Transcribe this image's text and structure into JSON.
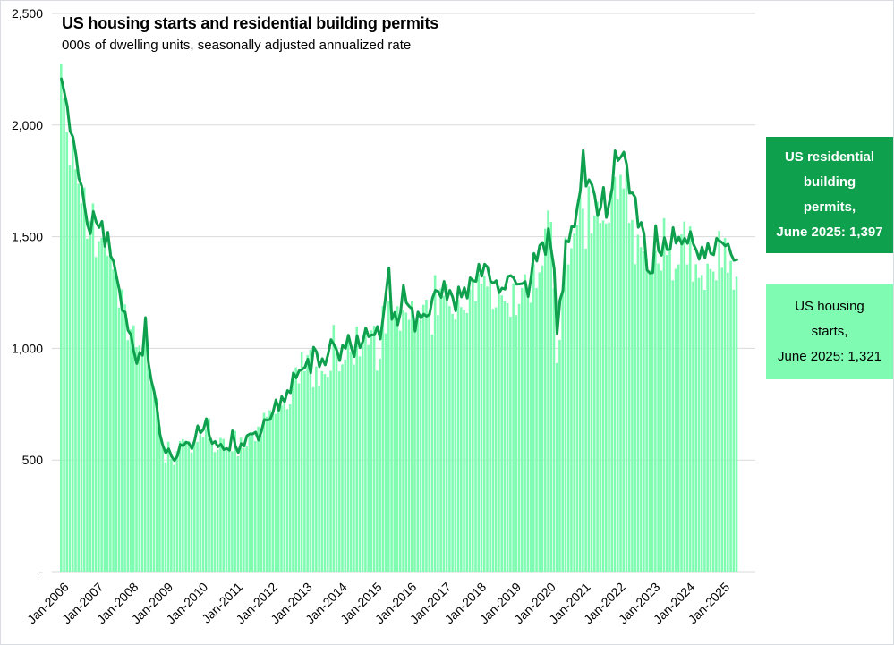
{
  "header": {
    "title": "US housing starts and residential building permits",
    "subtitle": "000s of dwelling units, seasonally adjusted annualized rate"
  },
  "legend": {
    "permits": {
      "bg": "#0FA04E",
      "text_color": "#ffffff",
      "lines": [
        "US residential",
        "building",
        "permits,",
        "June 2025: 1,397"
      ]
    },
    "starts": {
      "bg": "#7FFCB2",
      "text_color": "#000000",
      "lines": [
        "US housing",
        "starts,",
        "June 2025: 1,321"
      ]
    }
  },
  "chart_data": {
    "type": "bar+line",
    "title": "US housing starts and residential building permits",
    "subtitle": "000s of dwelling units, seasonally adjusted annualized rate",
    "x_start": "Jan-2006",
    "x_end": "Jun-2025",
    "x_frequency": "monthly",
    "ylim": [
      0,
      2500
    ],
    "grid": "horizontal",
    "legend_position": "right",
    "y_tick_values": [
      0,
      500,
      1000,
      1500,
      2000,
      2500
    ],
    "y_ticks": [
      "-",
      "500",
      "1,000",
      "1,500",
      "2,000",
      "2,500"
    ],
    "x_ticks": [
      "Jan-2006",
      "Jan-2007",
      "Jan-2008",
      "Jan-2009",
      "Jan-2010",
      "Jan-2011",
      "Jan-2012",
      "Jan-2013",
      "Jan-2014",
      "Jan-2015",
      "Jan-2016",
      "Jan-2017",
      "Jan-2018",
      "Jan-2019",
      "Jan-2020",
      "Jan-2021",
      "Jan-2022",
      "Jan-2023",
      "Jan-2024",
      "Jan-2025"
    ],
    "x_tick_interval_months": 12,
    "colors": {
      "bars": "#7FFCB2",
      "line": "#0FA04E",
      "grid": "#D9D9D9",
      "text": "#000000"
    },
    "series": [
      {
        "name": "US housing starts",
        "type": "bar",
        "latest_label": "June 2025: 1,321",
        "values": [
          2273,
          2119,
          1969,
          1821,
          1942,
          1802,
          1737,
          1650,
          1720,
          1491,
          1570,
          1649,
          1409,
          1480,
          1495,
          1490,
          1415,
          1448,
          1354,
          1330,
          1183,
          1264,
          1197,
          1037,
          1084,
          1103,
          1005,
          1013,
          973,
          1046,
          923,
          844,
          820,
          777,
          652,
          560,
          490,
          582,
          505,
          478,
          540,
          585,
          594,
          586,
          585,
          534,
          588,
          581,
          614,
          604,
          636,
          687,
          583,
          536,
          546,
          599,
          594,
          543,
          545,
          539,
          630,
          517,
          600,
          554,
          561,
          608,
          623,
          585,
          650,
          610,
          711,
          694,
          723,
          718,
          706,
          747,
          744,
          754,
          728,
          749,
          854,
          915,
          843,
          983,
          898,
          969,
          994,
          826,
          919,
          831,
          898,
          885,
          873,
          899,
          1105,
          1010,
          897,
          928,
          950,
          1039,
          984,
          927,
          1098,
          964,
          1028,
          1080,
          1015,
          1081,
          1101,
          900,
          954,
          1190,
          1067,
          1213,
          1147,
          1141,
          1189,
          1079,
          1171,
          1160,
          1128,
          1213,
          1113,
          1155,
          1128,
          1195,
          1218,
          1164,
          1062,
          1328,
          1149,
          1268,
          1236,
          1288,
          1189,
          1154,
          1129,
          1217,
          1185,
          1172,
          1158,
          1265,
          1303,
          1210,
          1334,
          1290,
          1327,
          1276,
          1329,
          1177,
          1184,
          1279,
          1237,
          1211,
          1202,
          1142,
          1291,
          1149,
          1199,
          1270,
          1332,
          1233,
          1204,
          1377,
          1270,
          1340,
          1371,
          1536,
          1617,
          1567,
          1269,
          934,
          1038,
          1265,
          1497,
          1376,
          1448,
          1514,
          1551,
          1680,
          1625,
          1447,
          1725,
          1514,
          1594,
          1657,
          1562,
          1573,
          1559,
          1563,
          1706,
          1768,
          1666,
          1777,
          1716,
          1805,
          1562,
          1575,
          1377,
          1508,
          1453,
          1434,
          1401,
          1348,
          1334,
          1436,
          1380,
          1348,
          1583,
          1418,
          1451,
          1305,
          1356,
          1376,
          1510,
          1568,
          1376,
          1546,
          1299,
          1377,
          1315,
          1329,
          1262,
          1379,
          1355,
          1344,
          1305,
          1526,
          1361,
          1494,
          1339,
          1392,
          1263,
          1321
        ]
      },
      {
        "name": "US residential building permits",
        "type": "line",
        "latest_label": "June 2025: 1,397",
        "values": [
          2207,
          2147,
          2085,
          1973,
          1946,
          1869,
          1763,
          1727,
          1638,
          1553,
          1513,
          1613,
          1566,
          1541,
          1569,
          1457,
          1520,
          1413,
          1389,
          1322,
          1261,
          1170,
          1162,
          1080,
          1061,
          984,
          932,
          982,
          969,
          1138,
          937,
          857,
          805,
          730,
          615,
          564,
          531,
          550,
          516,
          498,
          518,
          570,
          564,
          580,
          575,
          551,
          589,
          653,
          622,
          637,
          685,
          610,
          574,
          583,
          559,
          571,
          547,
          552,
          544,
          631,
          563,
          534,
          574,
          563,
          609,
          617,
          617,
          625,
          589,
          630,
          681,
          679,
          682,
          715,
          769,
          723,
          784,
          760,
          811,
          801,
          890,
          868,
          900,
          905,
          915,
          952,
          890,
          1005,
          985,
          918,
          954,
          926,
          974,
          1039,
          1017,
          991,
          945,
          1014,
          1000,
          1059,
          1005,
          963,
          1057,
          1003,
          1031,
          1092,
          1052,
          1060,
          1060,
          1098,
          1042,
          1140,
          1250,
          1360,
          1130,
          1161,
          1105,
          1161,
          1282,
          1204,
          1188,
          1177,
          1077,
          1163,
          1136,
          1153,
          1144,
          1152,
          1225,
          1260,
          1255,
          1228,
          1300,
          1219,
          1260,
          1228,
          1168,
          1275,
          1230,
          1272,
          1225,
          1316,
          1303,
          1300,
          1377,
          1323,
          1377,
          1364,
          1301,
          1292,
          1303,
          1249,
          1270,
          1265,
          1322,
          1326,
          1316,
          1287,
          1288,
          1290,
          1299,
          1232,
          1317,
          1425,
          1391,
          1461,
          1474,
          1420,
          1536,
          1438,
          1356,
          1066,
          1216,
          1258,
          1483,
          1476,
          1545,
          1544,
          1635,
          1704,
          1886,
          1726,
          1755,
          1733,
          1683,
          1594,
          1630,
          1721,
          1586,
          1653,
          1717,
          1885,
          1841,
          1857,
          1879,
          1823,
          1695,
          1696,
          1674,
          1542,
          1564,
          1512,
          1351,
          1337,
          1339,
          1550,
          1437,
          1417,
          1496,
          1441,
          1443,
          1541,
          1471,
          1498,
          1467,
          1493,
          1470,
          1523,
          1467,
          1440,
          1399,
          1454,
          1406,
          1470,
          1425,
          1419,
          1493,
          1482,
          1473,
          1459,
          1467,
          1422,
          1394,
          1397
        ]
      }
    ]
  }
}
